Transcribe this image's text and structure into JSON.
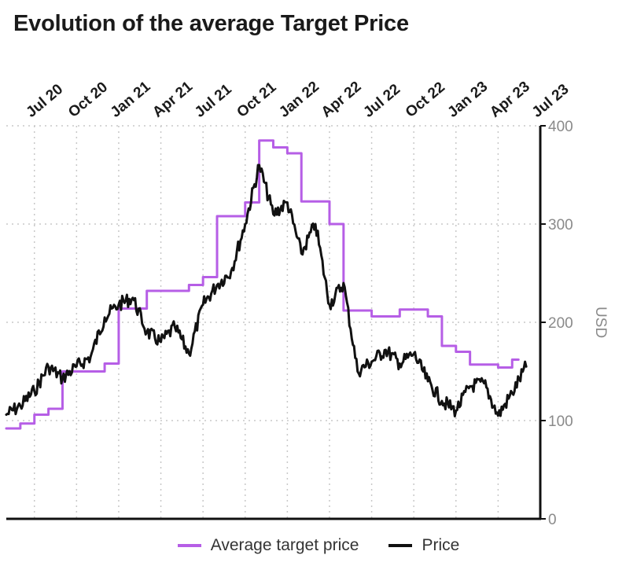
{
  "title": "Evolution of the average Target Price",
  "chart_data": {
    "type": "line",
    "x_ticks": [
      "Jul 20",
      "Oct 20",
      "Jan 21",
      "Apr 21",
      "Jul 21",
      "Oct 21",
      "Jan 22",
      "Apr 22",
      "Jul 22",
      "Oct 22",
      "Jan 23",
      "Apr 23",
      "Jul 23"
    ],
    "y_ticks": [
      "400",
      "300",
      "200",
      "100",
      "0"
    ],
    "ylabel": "USD",
    "ylim": [
      0,
      400
    ],
    "xlim": [
      "2020-05",
      "2023-07"
    ],
    "grid": true,
    "legend_position": "bottom",
    "series": [
      {
        "name": "Average target price",
        "color": "#b65ee6",
        "style": "step",
        "points": [
          [
            "2020-05",
            92
          ],
          [
            "2020-06",
            97
          ],
          [
            "2020-07",
            106
          ],
          [
            "2020-08",
            112
          ],
          [
            "2020-09",
            150
          ],
          [
            "2020-12",
            158
          ],
          [
            "2021-01",
            214
          ],
          [
            "2021-03",
            232
          ],
          [
            "2021-06",
            238
          ],
          [
            "2021-07",
            246
          ],
          [
            "2021-08",
            308
          ],
          [
            "2021-10",
            322
          ],
          [
            "2021-11",
            385
          ],
          [
            "2021-12",
            378
          ],
          [
            "2022-01",
            372
          ],
          [
            "2022-02",
            323
          ],
          [
            "2022-04",
            300
          ],
          [
            "2022-05",
            212
          ],
          [
            "2022-07",
            206
          ],
          [
            "2022-09",
            213
          ],
          [
            "2022-11",
            206
          ],
          [
            "2022-12",
            176
          ],
          [
            "2023-01",
            170
          ],
          [
            "2023-02",
            157
          ],
          [
            "2023-04",
            154
          ],
          [
            "2023-05",
            162
          ]
        ]
      },
      {
        "name": "Price",
        "color": "#111111",
        "style": "line",
        "points": [
          [
            "2020-05",
            106
          ],
          [
            "2020-06",
            115
          ],
          [
            "2020-07",
            130
          ],
          [
            "2020-08",
            155
          ],
          [
            "2020-09",
            143
          ],
          [
            "2020-10",
            155
          ],
          [
            "2020-11",
            165
          ],
          [
            "2020-12",
            205
          ],
          [
            "2021-01",
            218
          ],
          [
            "2021-02",
            225
          ],
          [
            "2021-03",
            190
          ],
          [
            "2021-04",
            180
          ],
          [
            "2021-05",
            195
          ],
          [
            "2021-06",
            168
          ],
          [
            "2021-07",
            218
          ],
          [
            "2021-08",
            238
          ],
          [
            "2021-09",
            252
          ],
          [
            "2021-10",
            300
          ],
          [
            "2021-11",
            360
          ],
          [
            "2021-12",
            310
          ],
          [
            "2022-01",
            322
          ],
          [
            "2022-02",
            270
          ],
          [
            "2022-03",
            300
          ],
          [
            "2022-04",
            218
          ],
          [
            "2022-05",
            240
          ],
          [
            "2022-06",
            150
          ],
          [
            "2022-07",
            160
          ],
          [
            "2022-08",
            172
          ],
          [
            "2022-09",
            158
          ],
          [
            "2022-10",
            168
          ],
          [
            "2022-11",
            140
          ],
          [
            "2022-12",
            120
          ],
          [
            "2023-01",
            110
          ],
          [
            "2023-02",
            135
          ],
          [
            "2023-03",
            138
          ],
          [
            "2023-04",
            105
          ],
          [
            "2023-05",
            128
          ],
          [
            "2023-06",
            155
          ]
        ]
      }
    ]
  },
  "legend": [
    {
      "label": "Average target price",
      "color": "#b65ee6"
    },
    {
      "label": "Price",
      "color": "#111111"
    }
  ]
}
